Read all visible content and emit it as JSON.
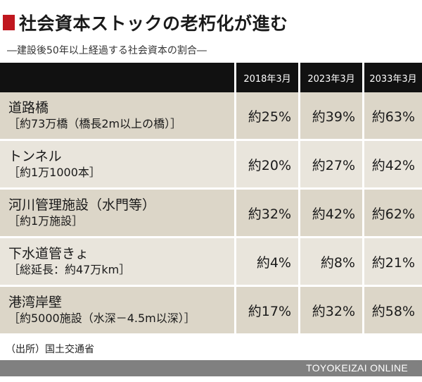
{
  "title": "社会資本ストックの老朽化が進む",
  "subtitle": "―建設後50年以上経過する社会資本の割合―",
  "source": "（出所）国土交通省",
  "footer": "TOYOKEIZAI  ONLINE",
  "colors": {
    "accent": "#c0171f",
    "header_bg": "#111111",
    "row_odd": "#dcd6c8",
    "row_even": "#e9e5dc",
    "footer_bg": "#808080"
  },
  "chart_data": {
    "type": "table",
    "columns": [
      "2018年3月",
      "2023年3月",
      "2033年3月"
    ],
    "rows": [
      {
        "name": "道路橋",
        "sub": "［約73万橋（橋長2m以上の橋）］",
        "values": [
          "約25%",
          "約39%",
          "約63%"
        ]
      },
      {
        "name": "トンネル",
        "sub": "［約1万1000本］",
        "values": [
          "約20%",
          "約27%",
          "約42%"
        ]
      },
      {
        "name": "河川管理施設（水門等）",
        "sub": "［約1万施設］",
        "values": [
          "約32%",
          "約42%",
          "約62%"
        ]
      },
      {
        "name": "下水道管きょ",
        "sub": "［総延長：約47万km］",
        "values": [
          "約4%",
          "約8%",
          "約21%"
        ]
      },
      {
        "name": "港湾岸壁",
        "sub": "［約5000施設（水深－4.5m以深）］",
        "values": [
          "約17%",
          "約32%",
          "約58%"
        ]
      }
    ]
  }
}
